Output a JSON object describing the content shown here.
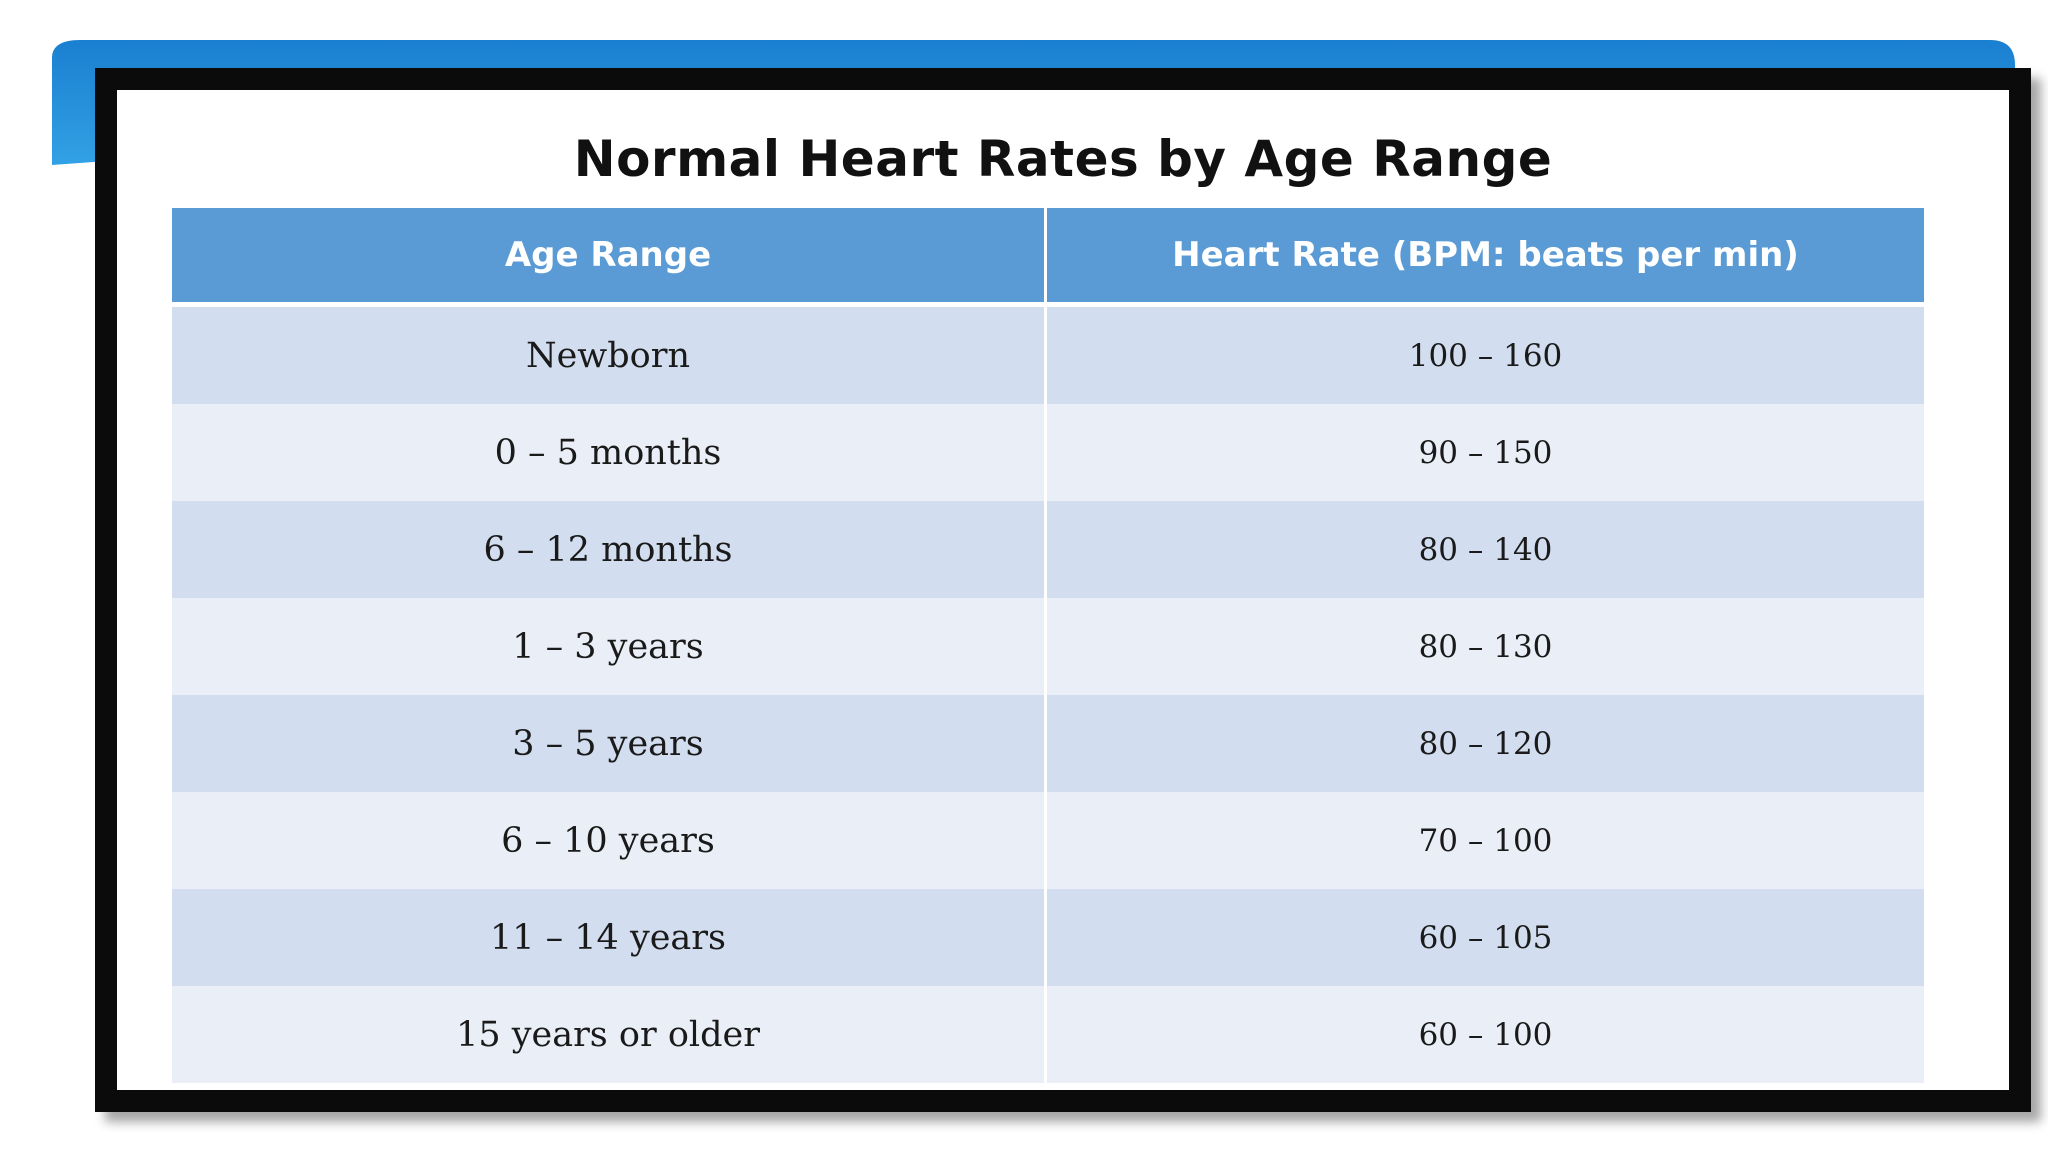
{
  "title": "Normal Heart Rates by Age Range",
  "colors": {
    "header_bg": "#5b9bd5",
    "row_dark": "#d2deef",
    "row_light": "#eaeff7",
    "frame": "#0b0b0b",
    "swoosh": "#1e8fd9"
  },
  "table": {
    "headers": [
      "Age Range",
      "Heart Rate (BPM: beats per min)"
    ],
    "rows": [
      {
        "age": "Newborn",
        "rate": "100 – 160"
      },
      {
        "age": "0 – 5 months",
        "rate": "90 – 150"
      },
      {
        "age": "6 – 12 months",
        "rate": "80 – 140"
      },
      {
        "age": "1 – 3 years",
        "rate": "80 – 130"
      },
      {
        "age": "3 – 5 years",
        "rate": "80 – 120"
      },
      {
        "age": "6 – 10 years",
        "rate": "70 – 100"
      },
      {
        "age": "11 – 14 years",
        "rate": "60 – 105"
      },
      {
        "age": "15 years or older",
        "rate": "60 – 100"
      }
    ]
  }
}
